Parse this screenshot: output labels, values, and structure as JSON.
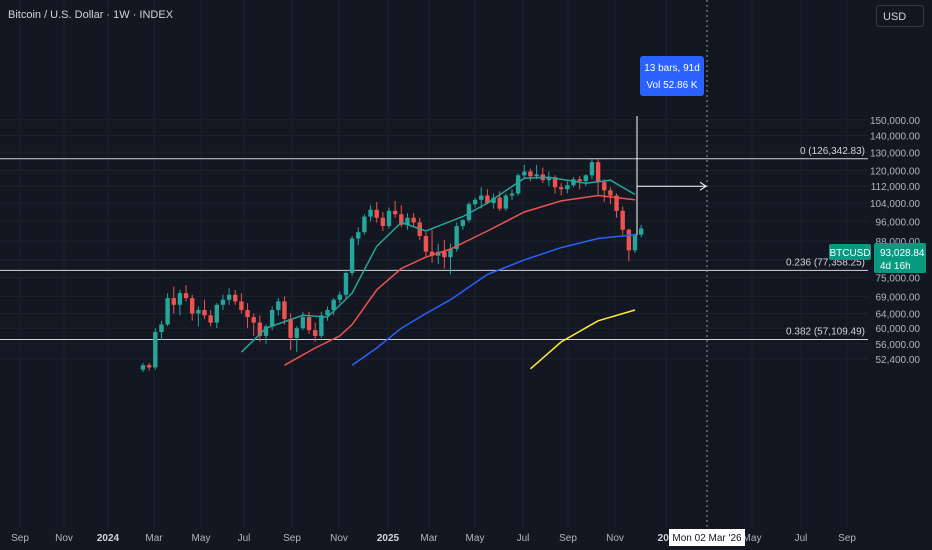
{
  "header": {
    "title": "Bitcoin / U.S. Dollar · 1W · INDEX",
    "currency_button": "USD"
  },
  "colors": {
    "background": "#131722",
    "up": "#26a69a",
    "down": "#ef5350",
    "ma_fast": "#26a69a",
    "ma_mid": "#ef5350",
    "ma_slow": "#2962ff",
    "ma_long": "#ffeb3b",
    "price_label_bg": "#089981",
    "measure_bg": "#2962ff",
    "grid": "#1e222d",
    "fib_line": "#d1d4dc"
  },
  "measure_tooltip": {
    "line1": "13 bars, 91d",
    "line2": "Vol 52.86 K"
  },
  "price_tag": {
    "symbol": "BTCUSD",
    "price": "93,028.84",
    "countdown": "4d 16h"
  },
  "crosshair_date": "Mon 02 Mar '26",
  "chart_data": {
    "type": "candlestick",
    "scale": "log",
    "ylim": [
      49000,
      153000
    ],
    "y_ticks": [
      52400,
      56000,
      60000,
      64000,
      69000,
      75000,
      81000,
      88000,
      96000,
      104000,
      112000,
      120000,
      130000,
      140000,
      150000
    ],
    "y_tick_labels": [
      "52,400.00",
      "56,000.00",
      "60,000.00",
      "64,000.00",
      "69,000.00",
      "75,000.00",
      "81,000.00",
      "88,000.00",
      "96,000.00",
      "104,000.00",
      "112,000.00",
      "120,000.00",
      "130,000.00",
      "140,000.00",
      "150,000.00"
    ],
    "x_ticks": [
      {
        "label": "Sep",
        "bold": false
      },
      {
        "label": "Nov",
        "bold": false
      },
      {
        "label": "2024",
        "bold": true
      },
      {
        "label": "Mar",
        "bold": false
      },
      {
        "label": "May",
        "bold": false
      },
      {
        "label": "Jul",
        "bold": false
      },
      {
        "label": "Sep",
        "bold": false
      },
      {
        "label": "Nov",
        "bold": false
      },
      {
        "label": "2025",
        "bold": true
      },
      {
        "label": "Mar",
        "bold": false
      },
      {
        "label": "May",
        "bold": false
      },
      {
        "label": "Jul",
        "bold": false
      },
      {
        "label": "Sep",
        "bold": false
      },
      {
        "label": "Nov",
        "bold": false
      },
      {
        "label": "202",
        "bold": true
      },
      {
        "label": "May",
        "bold": false
      },
      {
        "label": "Jul",
        "bold": false
      },
      {
        "label": "Sep",
        "bold": false
      }
    ],
    "fib_levels": [
      {
        "label": "0 (126,342.83)",
        "price": 126342.83
      },
      {
        "label": "0.236 (77,358.25)",
        "price": 77358.25
      },
      {
        "label": "0.382 (57,109.49)",
        "price": 57109.49
      }
    ],
    "candles": [
      [
        50000,
        51500,
        49500,
        51000
      ],
      [
        51000,
        51500,
        49800,
        50500
      ],
      [
        50500,
        60000,
        50000,
        59000
      ],
      [
        59000,
        62000,
        57000,
        61000
      ],
      [
        61000,
        70000,
        60500,
        68500
      ],
      [
        68500,
        72000,
        64000,
        66500
      ],
      [
        66500,
        71000,
        63500,
        70000
      ],
      [
        70000,
        72500,
        67500,
        68500
      ],
      [
        68500,
        69500,
        62000,
        64000
      ],
      [
        64000,
        66000,
        60500,
        65000
      ],
      [
        65000,
        68000,
        62500,
        63500
      ],
      [
        63500,
        65000,
        60500,
        61500
      ],
      [
        61500,
        67000,
        60000,
        66500
      ],
      [
        66500,
        69500,
        65000,
        68000
      ],
      [
        68000,
        71500,
        66500,
        69500
      ],
      [
        69500,
        71000,
        66500,
        67500
      ],
      [
        67500,
        70000,
        64000,
        65000
      ],
      [
        65000,
        67000,
        60000,
        63000
      ],
      [
        63000,
        64000,
        58000,
        61500
      ],
      [
        61500,
        63500,
        56500,
        58000
      ],
      [
        58000,
        61000,
        56000,
        60500
      ],
      [
        60500,
        66000,
        59500,
        65000
      ],
      [
        65000,
        68500,
        63500,
        67500
      ],
      [
        67500,
        69000,
        61000,
        62500
      ],
      [
        62500,
        64000,
        54500,
        57500
      ],
      [
        57500,
        60500,
        54000,
        60000
      ],
      [
        60000,
        64500,
        59500,
        63000
      ],
      [
        63000,
        64500,
        58500,
        59500
      ],
      [
        59500,
        61500,
        56500,
        58000
      ],
      [
        58000,
        64500,
        57500,
        63500
      ],
      [
        63500,
        66000,
        62000,
        65000
      ],
      [
        65000,
        68500,
        63500,
        68000
      ],
      [
        68000,
        70500,
        67000,
        69500
      ],
      [
        69500,
        77000,
        68500,
        76500
      ],
      [
        76500,
        90000,
        75500,
        89000
      ],
      [
        89000,
        93500,
        86500,
        91500
      ],
      [
        91500,
        99000,
        90500,
        98000
      ],
      [
        98000,
        103000,
        96000,
        101000
      ],
      [
        101000,
        104500,
        95500,
        97500
      ],
      [
        97500,
        100000,
        92000,
        94000
      ],
      [
        94000,
        102000,
        93000,
        100500
      ],
      [
        100500,
        105000,
        97500,
        99000
      ],
      [
        99000,
        103000,
        93500,
        94500
      ],
      [
        94500,
        99500,
        92500,
        97500
      ],
      [
        97500,
        99500,
        94000,
        95500
      ],
      [
        95500,
        97500,
        88500,
        90000
      ],
      [
        90000,
        91500,
        82000,
        84000
      ],
      [
        84000,
        92500,
        80000,
        82500
      ],
      [
        82500,
        87000,
        79500,
        84000
      ],
      [
        84000,
        88500,
        78000,
        82000
      ],
      [
        82000,
        87000,
        76000,
        85000
      ],
      [
        85000,
        95500,
        84000,
        94000
      ],
      [
        94000,
        97000,
        92500,
        96500
      ],
      [
        96500,
        104500,
        95500,
        103500
      ],
      [
        103500,
        106500,
        102000,
        105500
      ],
      [
        105500,
        111500,
        101500,
        107500
      ],
      [
        107500,
        110500,
        103500,
        104000
      ],
      [
        104000,
        108500,
        101500,
        106500
      ],
      [
        106500,
        109500,
        100500,
        101500
      ],
      [
        101500,
        108500,
        100500,
        107500
      ],
      [
        107500,
        110500,
        105500,
        108500
      ],
      [
        108500,
        118500,
        107500,
        117500
      ],
      [
        117500,
        123000,
        115500,
        119500
      ],
      [
        119500,
        121000,
        114500,
        117000
      ],
      [
        117000,
        123000,
        115500,
        118000
      ],
      [
        118000,
        121500,
        113500,
        115000
      ],
      [
        115000,
        119500,
        112000,
        116500
      ],
      [
        116500,
        117500,
        108500,
        111500
      ],
      [
        111500,
        113500,
        107500,
        110500
      ],
      [
        110500,
        114500,
        108500,
        112500
      ],
      [
        112500,
        116500,
        111500,
        115500
      ],
      [
        115500,
        117000,
        110500,
        114500
      ],
      [
        114500,
        118000,
        112000,
        117500
      ],
      [
        117500,
        126342.83,
        115500,
        124500
      ],
      [
        124500,
        126000,
        108000,
        114000
      ],
      [
        114000,
        115500,
        104500,
        110000
      ],
      [
        110000,
        111500,
        103500,
        107500
      ],
      [
        107500,
        108500,
        97500,
        100500
      ],
      [
        100500,
        102500,
        90500,
        92500
      ],
      [
        92500,
        93000,
        80500,
        84500
      ],
      [
        84500,
        91000,
        83500,
        90500
      ],
      [
        90500,
        94500,
        89500,
        93028.84
      ]
    ],
    "ma_fast": [
      [
        16,
        54000
      ],
      [
        20,
        60000
      ],
      [
        26,
        63500
      ],
      [
        30,
        63000
      ],
      [
        34,
        70000
      ],
      [
        38,
        86000
      ],
      [
        42,
        95500
      ],
      [
        46,
        92000
      ],
      [
        52,
        98000
      ],
      [
        56,
        104000
      ],
      [
        62,
        116000
      ],
      [
        66,
        116500
      ],
      [
        72,
        113500
      ],
      [
        76,
        115000
      ],
      [
        80,
        108000
      ]
    ],
    "ma_mid": [
      [
        23,
        51000
      ],
      [
        28,
        55000
      ],
      [
        32,
        58000
      ],
      [
        34,
        61000
      ],
      [
        38,
        71000
      ],
      [
        42,
        78000
      ],
      [
        46,
        82000
      ],
      [
        50,
        85000
      ],
      [
        56,
        92000
      ],
      [
        62,
        100000
      ],
      [
        68,
        105000
      ],
      [
        74,
        107500
      ],
      [
        80,
        105500
      ]
    ],
    "ma_slow": [
      [
        34,
        51000
      ],
      [
        38,
        55000
      ],
      [
        42,
        60000
      ],
      [
        46,
        64000
      ],
      [
        50,
        68000
      ],
      [
        56,
        76000
      ],
      [
        62,
        81000
      ],
      [
        68,
        85500
      ],
      [
        74,
        89000
      ],
      [
        80,
        90500
      ]
    ],
    "ma_long": [
      [
        63,
        50200
      ],
      [
        68,
        56500
      ],
      [
        74,
        62000
      ],
      [
        80,
        65000
      ]
    ],
    "measure_end_price": 112000
  }
}
